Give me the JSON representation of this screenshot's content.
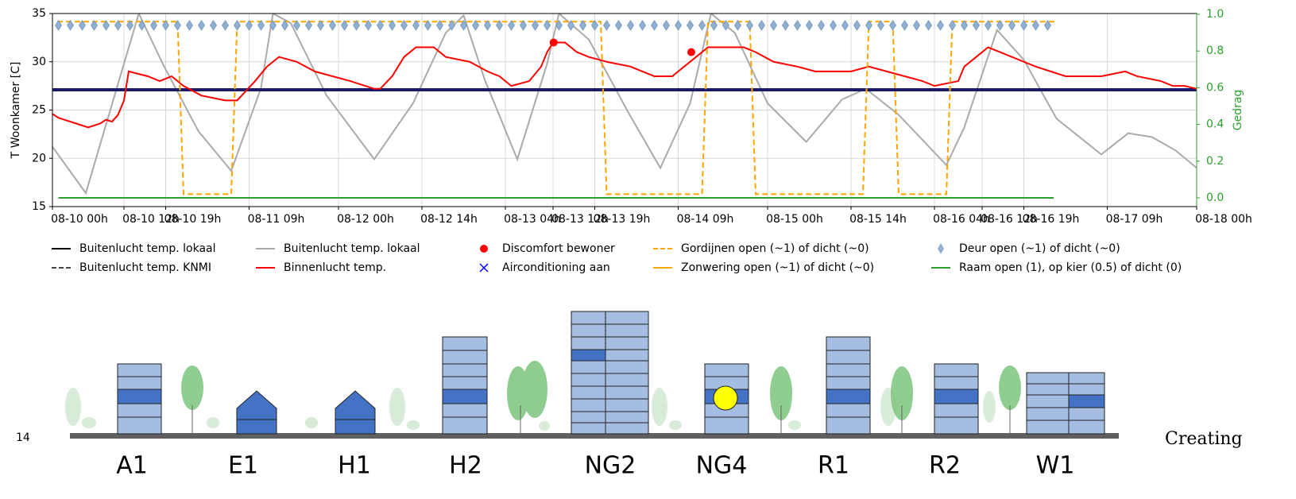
{
  "chart_data": {
    "type": "line",
    "ylabel": "T Woonkamer [C]",
    "y2label": "Gedrag",
    "xlim": [
      0,
      192
    ],
    "ylim": [
      15,
      35
    ],
    "y2lim": [
      0,
      1
    ],
    "xticks": [
      {
        "value": 0,
        "label": "08-10 00h"
      },
      {
        "value": 12,
        "label": "08-10 12h"
      },
      {
        "value": 19,
        "label": "08-10 19h"
      },
      {
        "value": 33,
        "label": "08-11 09h"
      },
      {
        "value": 48,
        "label": "08-12 00h"
      },
      {
        "value": 62,
        "label": "08-12 14h"
      },
      {
        "value": 76,
        "label": "08-13 04h"
      },
      {
        "value": 84,
        "label": "08-13 12h"
      },
      {
        "value": 91,
        "label": "08-13 19h"
      },
      {
        "value": 105,
        "label": "08-14 09h"
      },
      {
        "value": 120,
        "label": "08-15 00h"
      },
      {
        "value": 134,
        "label": "08-15 14h"
      },
      {
        "value": 148,
        "label": "08-16 04h"
      },
      {
        "value": 156,
        "label": "08-16 12h"
      },
      {
        "value": 163,
        "label": "08-16 19h"
      },
      {
        "value": 177,
        "label": "08-17 09h"
      },
      {
        "value": 192,
        "label": "08-18 00h"
      }
    ],
    "yticks": [
      15,
      20,
      25,
      30,
      35
    ],
    "y2ticks": [
      {
        "value": 0,
        "label": "0.0"
      },
      0.2,
      0.4,
      0.6,
      0.8,
      {
        "value": 1,
        "label": "1.0"
      }
    ],
    "grid": true,
    "series": [
      {
        "color": "#aaaaaa",
        "style": "line",
        "axis": "y",
        "x": [
          0,
          5.6,
          12,
          14.5,
          18.5,
          24.5,
          30,
          35,
          37,
          40,
          46,
          54,
          60.5,
          66,
          69,
          72.5,
          78,
          83,
          85,
          90,
          96.5,
          102,
          107,
          110.5,
          114.5,
          120,
          126.5,
          132.5,
          136.5,
          142,
          150,
          153,
          158.5,
          163,
          168.5,
          176,
          180.5,
          184.5,
          188.5,
          192
        ],
        "values": [
          21.2,
          16.4,
          29.8,
          35,
          29.8,
          22.8,
          18.7,
          27.3,
          35,
          34,
          26.5,
          19.9,
          25.7,
          33,
          34.8,
          28.2,
          19.9,
          29.8,
          35,
          32.3,
          24.9,
          19,
          25.7,
          35,
          33,
          25.7,
          21.7,
          26.1,
          27.2,
          24.5,
          19.3,
          23.2,
          33.3,
          30.2,
          24.1,
          20.4,
          22.6,
          22.2,
          20.8,
          19
        ]
      },
      {
        "color": "#1a1a6e",
        "style": "thick",
        "axis": "y",
        "x": [
          0,
          192
        ],
        "values": [
          27.1,
          27.1
        ]
      },
      {
        "color": "#ff0000",
        "style": "line",
        "axis": "y",
        "x": [
          0,
          1,
          2,
          4,
          6,
          8,
          9,
          10,
          11,
          12,
          12.8,
          16,
          18,
          20,
          22,
          25,
          29,
          31,
          34,
          36,
          38,
          41,
          44,
          47,
          50,
          54,
          55,
          57,
          59,
          61,
          64,
          66,
          70,
          73,
          75,
          77,
          80,
          82,
          83,
          84,
          86,
          88,
          90,
          93,
          97,
          99,
          101,
          104,
          106,
          108,
          110,
          113,
          116,
          118,
          121,
          125,
          128,
          132,
          134,
          137,
          140,
          143,
          146,
          148,
          152,
          153,
          155,
          157,
          159,
          161,
          163,
          165,
          170,
          176,
          180,
          182,
          186,
          188,
          190,
          192
        ],
        "values": [
          24.6,
          24.2,
          24.0,
          23.6,
          23.2,
          23.6,
          24.0,
          23.8,
          24.5,
          26.0,
          29.0,
          28.5,
          28.0,
          28.5,
          27.5,
          26.5,
          26.0,
          26.0,
          28.0,
          29.5,
          30.5,
          30.0,
          29.0,
          28.5,
          28.0,
          27.2,
          27.2,
          28.5,
          30.5,
          31.5,
          31.5,
          30.5,
          30.0,
          29.0,
          28.5,
          27.5,
          28.0,
          29.5,
          31.0,
          32.0,
          32.0,
          31.0,
          30.5,
          30.0,
          29.5,
          29.0,
          28.5,
          28.5,
          29.5,
          30.5,
          31.5,
          31.5,
          31.5,
          31.0,
          30.0,
          29.5,
          29.0,
          29.0,
          29.0,
          29.5,
          29.0,
          28.5,
          28.0,
          27.5,
          28.0,
          29.5,
          30.5,
          31.5,
          31.0,
          30.5,
          30.0,
          29.5,
          28.5,
          28.5,
          29.0,
          28.5,
          28.0,
          27.5,
          27.5,
          27.2
        ]
      },
      {
        "color": "#ff0000",
        "style": "dot",
        "axis": "y",
        "x": [
          84.1,
          107.2
        ],
        "values": [
          32,
          31
        ]
      },
      {
        "color": "#ffa500",
        "style": "dashed",
        "axis": "y2",
        "x": [
          0.8,
          21,
          22,
          30,
          31,
          92,
          93,
          109,
          110,
          117,
          118,
          136,
          137,
          141,
          142,
          150,
          151,
          168.5
        ],
        "values": [
          0.96,
          0.96,
          0.02,
          0.02,
          0.96,
          0.96,
          0.02,
          0.02,
          0.96,
          0.96,
          0.02,
          0.02,
          0.96,
          0.96,
          0.02,
          0.02,
          0.96,
          0.96
        ]
      },
      {
        "color": "#2ca02c",
        "style": "line",
        "axis": "y2",
        "x": [
          1,
          168
        ],
        "values": [
          0,
          0
        ]
      },
      {
        "color": "#8fb0d0",
        "style": "diamond",
        "axis": "y2",
        "x": [
          1,
          3,
          5,
          7,
          9,
          11,
          13,
          15,
          17,
          19,
          21,
          23,
          25,
          27,
          29,
          31,
          33,
          35,
          37,
          39,
          41,
          43,
          45,
          47,
          49,
          51,
          53,
          55,
          57,
          59,
          61,
          63,
          65,
          67,
          69,
          71,
          73,
          75,
          77,
          79,
          81,
          83,
          85,
          87,
          89,
          91,
          93,
          95,
          97,
          99,
          101,
          103,
          105,
          107,
          109,
          111,
          113,
          115,
          117,
          119,
          121,
          123,
          125,
          127,
          129,
          131,
          133,
          135,
          137,
          139,
          141,
          143,
          145,
          147,
          149,
          151,
          153,
          155,
          157,
          159,
          161,
          163,
          165,
          167
        ],
        "values": [
          0.94,
          0.94,
          0.94,
          0.94,
          0.94,
          0.94,
          0.94,
          0.94,
          0.94,
          0.94,
          0.94,
          0.94,
          0.94,
          0.94,
          0.94,
          0.94,
          0.94,
          0.94,
          0.94,
          0.94,
          0.94,
          0.94,
          0.94,
          0.94,
          0.94,
          0.94,
          0.94,
          0.94,
          0.94,
          0.94,
          0.94,
          0.94,
          0.94,
          0.94,
          0.94,
          0.94,
          0.94,
          0.94,
          0.94,
          0.94,
          0.94,
          0.94,
          0.94,
          0.94,
          0.94,
          0.94,
          0.94,
          0.94,
          0.94,
          0.94,
          0.94,
          0.94,
          0.94,
          0.94,
          0.94,
          0.94,
          0.94,
          0.94,
          0.94,
          0.94,
          0.94,
          0.94,
          0.94,
          0.94,
          0.94,
          0.94,
          0.94,
          0.94,
          0.94,
          0.94,
          0.94,
          0.94,
          0.94,
          0.94,
          0.94,
          0.94,
          0.94,
          0.94,
          0.94,
          0.94,
          0.94,
          0.94,
          0.94,
          0.94
        ]
      }
    ],
    "legend": [
      {
        "label": "Buitenlucht temp. lokaal",
        "color": "#000000",
        "marker": "line"
      },
      {
        "label": "Buitenlucht temp. KNMI",
        "color": "#444444",
        "marker": "dashed"
      },
      {
        "label": "Buitenlucht temp. lokaal",
        "color": "#aaaaaa",
        "marker": "line"
      },
      {
        "label": "Binnenlucht temp.",
        "color": "#ff0000",
        "marker": "line"
      },
      {
        "label": "Discomfort bewoner",
        "color": "#ff0000",
        "marker": "dot"
      },
      {
        "label": "Airconditioning aan",
        "color": "#0000ff",
        "marker": "x"
      },
      {
        "label": "Gordijnen open (~1) of dicht (~0)",
        "color": "#ffa500",
        "marker": "dashed"
      },
      {
        "label": "Zonwering open (~1) of dicht (~0)",
        "color": "#ffa500",
        "marker": "line"
      },
      {
        "label": "Deur open (~1) of dicht (~0)",
        "color": "#8fb0d0",
        "marker": "diamond"
      },
      {
        "label": "Raam open (1), op kier (0.5) of dicht (0)",
        "color": "#2ca02c",
        "marker": "line"
      }
    ]
  },
  "illustration": {
    "labels": [
      "A1",
      "E1",
      "H1",
      "H2",
      "NG2",
      "NG4",
      "R1",
      "R2",
      "W1"
    ]
  },
  "page_number": "14",
  "side_text": "Creating"
}
